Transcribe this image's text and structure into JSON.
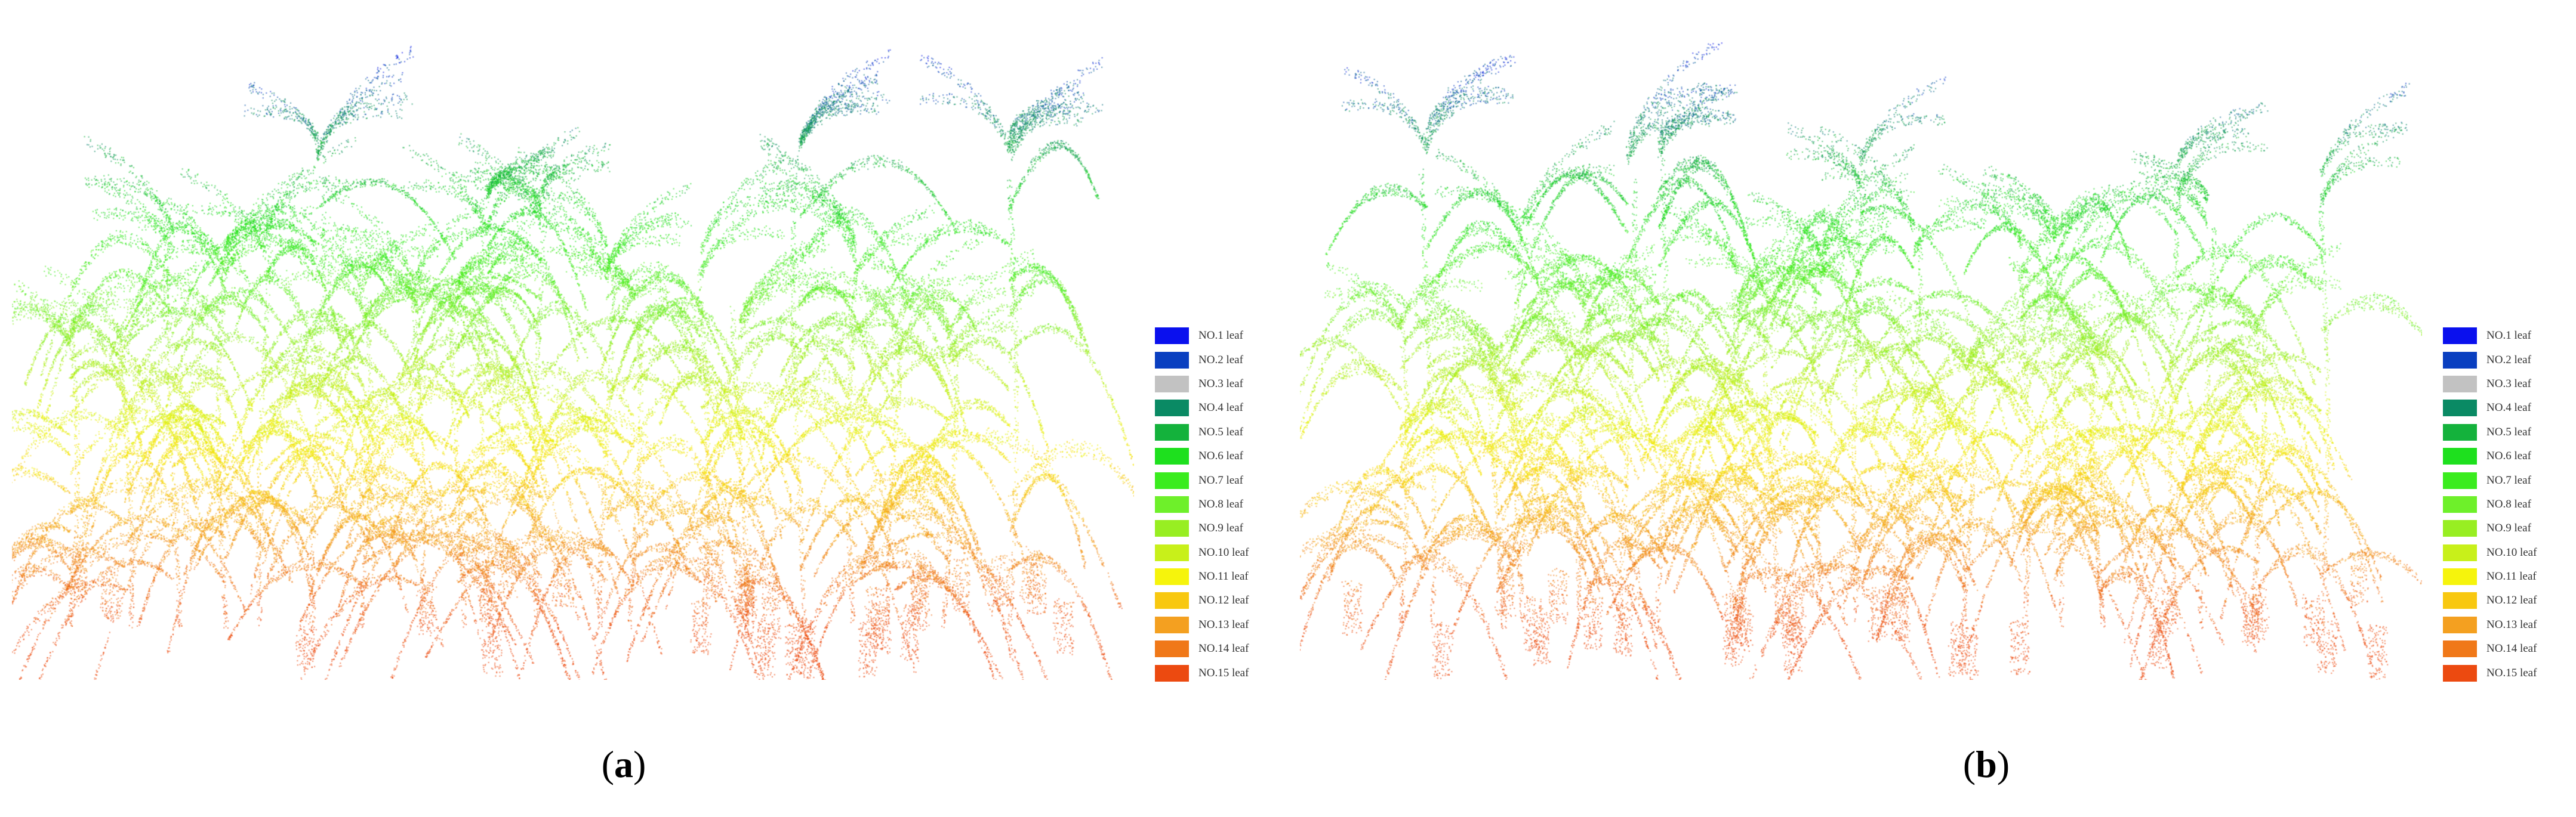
{
  "figure": {
    "panels": [
      {
        "id": "a",
        "caption_open": "(",
        "caption_letter": "a",
        "caption_close": ")",
        "description": "maize canopy point cloud, leaves colored by leaf number"
      },
      {
        "id": "b",
        "caption_open": "(",
        "caption_letter": "b",
        "caption_close": ")",
        "description": "maize canopy point cloud, leaves colored by leaf number"
      }
    ],
    "legend": [
      {
        "label": "NO.1 leaf",
        "color": "#0a10ee"
      },
      {
        "label": "NO.2 leaf",
        "color": "#0a3fc0"
      },
      {
        "label": "NO.3 leaf",
        "color": "#c2c2c2"
      },
      {
        "label": "NO.4 leaf",
        "color": "#0a8a64"
      },
      {
        "label": "NO.5 leaf",
        "color": "#14b23c"
      },
      {
        "label": "NO.6 leaf",
        "color": "#1ee01e"
      },
      {
        "label": "NO.7 leaf",
        "color": "#3aec1e"
      },
      {
        "label": "NO.8 leaf",
        "color": "#6ef02a"
      },
      {
        "label": "NO.9 leaf",
        "color": "#98ee22"
      },
      {
        "label": "NO.10 leaf",
        "color": "#c8f01a"
      },
      {
        "label": "NO.11 leaf",
        "color": "#f6f40c"
      },
      {
        "label": "NO.12 leaf",
        "color": "#f8c810"
      },
      {
        "label": "NO.13 leaf",
        "color": "#f4a020"
      },
      {
        "label": "NO.14 leaf",
        "color": "#f07818"
      },
      {
        "label": "NO.15 leaf",
        "color": "#ec4a10"
      }
    ]
  }
}
